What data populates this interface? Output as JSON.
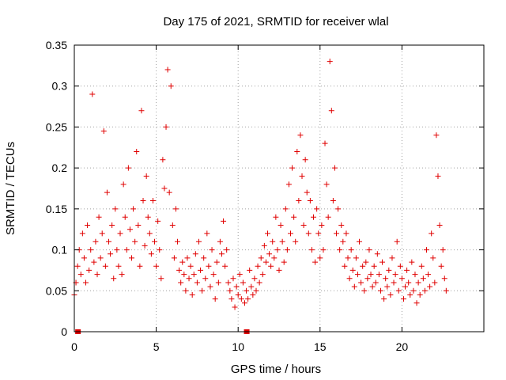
{
  "chart_data": {
    "type": "scatter",
    "title": "Day 175 of 2021, SRMTID for receiver wlal",
    "xlabel": "GPS time / hours",
    "ylabel": "SRMTID / TECUs",
    "xlim": [
      0,
      25
    ],
    "ylim": [
      0,
      0.35
    ],
    "xticks": [
      0,
      5,
      10,
      15,
      20
    ],
    "xtick_labels": [
      "0",
      "5",
      "10",
      "15",
      "20"
    ],
    "yticks": [
      0,
      0.05,
      0.1,
      0.15,
      0.2,
      0.25,
      0.3,
      0.35
    ],
    "ytick_labels": [
      "0",
      "0.05",
      "0.1",
      "0.15",
      "0.2",
      "0.25",
      "0.3",
      "0.35"
    ],
    "grid": true,
    "marker": "+",
    "color": "#e00000",
    "series": [
      {
        "name": "SRMTID",
        "x": [
          0.0,
          0.1,
          0.2,
          0.3,
          0.4,
          0.5,
          0.6,
          0.7,
          0.8,
          0.9,
          1.0,
          1.1,
          1.2,
          1.3,
          1.4,
          1.5,
          1.6,
          1.7,
          1.8,
          1.9,
          2.0,
          2.1,
          2.2,
          2.3,
          2.4,
          2.5,
          2.6,
          2.7,
          2.8,
          2.9,
          3.0,
          3.1,
          3.2,
          3.3,
          3.4,
          3.5,
          3.6,
          3.7,
          3.8,
          3.9,
          4.0,
          4.1,
          4.2,
          4.3,
          4.4,
          4.5,
          4.6,
          4.7,
          4.8,
          4.9,
          5.0,
          5.1,
          5.2,
          5.3,
          5.4,
          5.5,
          5.6,
          5.7,
          5.8,
          5.9,
          6.0,
          6.1,
          6.2,
          6.3,
          6.4,
          6.5,
          6.6,
          6.7,
          6.8,
          6.9,
          7.0,
          7.1,
          7.2,
          7.3,
          7.4,
          7.5,
          7.6,
          7.7,
          7.8,
          7.9,
          8.0,
          8.1,
          8.2,
          8.3,
          8.4,
          8.5,
          8.6,
          8.7,
          8.8,
          8.9,
          9.0,
          9.1,
          9.2,
          9.3,
          9.4,
          9.5,
          9.6,
          9.7,
          9.8,
          9.9,
          10.0,
          10.1,
          10.2,
          10.3,
          10.4,
          10.5,
          10.6,
          10.7,
          10.8,
          10.9,
          11.0,
          11.1,
          11.2,
          11.3,
          11.4,
          11.5,
          11.6,
          11.7,
          11.8,
          11.9,
          12.0,
          12.1,
          12.2,
          12.3,
          12.4,
          12.5,
          12.6,
          12.7,
          12.8,
          12.9,
          13.0,
          13.1,
          13.2,
          13.3,
          13.4,
          13.5,
          13.6,
          13.7,
          13.8,
          13.9,
          14.0,
          14.1,
          14.2,
          14.3,
          14.4,
          14.5,
          14.6,
          14.7,
          14.8,
          14.9,
          15.0,
          15.1,
          15.2,
          15.3,
          15.4,
          15.5,
          15.6,
          15.7,
          15.8,
          15.9,
          16.0,
          16.1,
          16.2,
          16.3,
          16.4,
          16.5,
          16.6,
          16.7,
          16.8,
          16.9,
          17.0,
          17.1,
          17.2,
          17.3,
          17.4,
          17.5,
          17.6,
          17.7,
          17.8,
          17.9,
          18.0,
          18.1,
          18.2,
          18.3,
          18.4,
          18.5,
          18.6,
          18.7,
          18.8,
          18.9,
          19.0,
          19.1,
          19.2,
          19.3,
          19.4,
          19.5,
          19.6,
          19.7,
          19.8,
          19.9,
          20.0,
          20.1,
          20.2,
          20.3,
          20.4,
          20.5,
          20.6,
          20.7,
          20.8,
          20.9,
          21.0,
          21.1,
          21.2,
          21.3,
          21.4,
          21.5,
          21.6,
          21.7,
          21.8,
          21.9,
          22.0,
          22.1,
          22.2,
          22.3,
          22.4,
          22.5,
          22.6,
          22.7
        ],
        "y": [
          0.045,
          0.06,
          0.08,
          0.1,
          0.07,
          0.12,
          0.09,
          0.06,
          0.13,
          0.075,
          0.1,
          0.29,
          0.085,
          0.11,
          0.07,
          0.14,
          0.09,
          0.12,
          0.245,
          0.08,
          0.17,
          0.11,
          0.095,
          0.13,
          0.065,
          0.15,
          0.1,
          0.08,
          0.12,
          0.07,
          0.18,
          0.14,
          0.1,
          0.2,
          0.125,
          0.09,
          0.15,
          0.11,
          0.22,
          0.13,
          0.08,
          0.27,
          0.16,
          0.105,
          0.19,
          0.14,
          0.12,
          0.095,
          0.16,
          0.11,
          0.08,
          0.135,
          0.1,
          0.065,
          0.21,
          0.175,
          0.25,
          0.32,
          0.17,
          0.3,
          0.13,
          0.09,
          0.15,
          0.11,
          0.075,
          0.06,
          0.085,
          0.07,
          0.05,
          0.09,
          0.065,
          0.08,
          0.045,
          0.07,
          0.095,
          0.06,
          0.11,
          0.075,
          0.05,
          0.09,
          0.065,
          0.12,
          0.08,
          0.055,
          0.1,
          0.07,
          0.04,
          0.085,
          0.06,
          0.11,
          0.095,
          0.135,
          0.08,
          0.1,
          0.06,
          0.05,
          0.04,
          0.065,
          0.03,
          0.055,
          0.045,
          0.07,
          0.04,
          0.06,
          0.035,
          0.05,
          0.04,
          0.075,
          0.055,
          0.045,
          0.065,
          0.05,
          0.08,
          0.06,
          0.09,
          0.07,
          0.105,
          0.085,
          0.12,
          0.095,
          0.08,
          0.11,
          0.09,
          0.14,
          0.1,
          0.075,
          0.13,
          0.11,
          0.085,
          0.15,
          0.1,
          0.18,
          0.12,
          0.2,
          0.14,
          0.11,
          0.22,
          0.16,
          0.24,
          0.19,
          0.13,
          0.21,
          0.17,
          0.12,
          0.16,
          0.1,
          0.14,
          0.085,
          0.15,
          0.12,
          0.09,
          0.13,
          0.1,
          0.23,
          0.18,
          0.14,
          0.33,
          0.27,
          0.16,
          0.2,
          0.12,
          0.15,
          0.1,
          0.13,
          0.11,
          0.08,
          0.12,
          0.09,
          0.065,
          0.1,
          0.075,
          0.055,
          0.09,
          0.07,
          0.11,
          0.06,
          0.08,
          0.05,
          0.085,
          0.065,
          0.1,
          0.07,
          0.055,
          0.08,
          0.06,
          0.095,
          0.07,
          0.05,
          0.085,
          0.04,
          0.065,
          0.055,
          0.075,
          0.045,
          0.09,
          0.06,
          0.07,
          0.11,
          0.05,
          0.08,
          0.065,
          0.04,
          0.055,
          0.075,
          0.06,
          0.045,
          0.085,
          0.05,
          0.07,
          0.035,
          0.06,
          0.045,
          0.08,
          0.065,
          0.05,
          0.1,
          0.07,
          0.055,
          0.12,
          0.09,
          0.06,
          0.24,
          0.19,
          0.13,
          0.08,
          0.1,
          0.065,
          0.05
        ]
      }
    ],
    "highlight_markers_x": [
      0.2,
      10.5
    ]
  }
}
